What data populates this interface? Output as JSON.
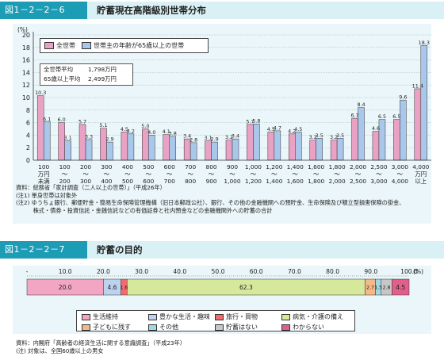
{
  "figure1": {
    "number": "図1－2－2－6",
    "title": "貯蓄現在高階級別世帯分布"
  },
  "figure2": {
    "number": "図1－2－2－7",
    "title": "貯蓄の目的"
  },
  "averages": {
    "all_label": "全世帯平均",
    "all_value": "1,798万円",
    "senior_label": "65歳以上平均",
    "senior_value": "2,499万円"
  },
  "notes1": [
    "資料：総務省「家計調査（二人以上の世帯）」（平成26年）",
    "(注1) 単身世帯は対象外",
    "(注2) ゆうちょ銀行、郵便貯金・簡易生命保険管理機構（旧日本郵政公社）、銀行、その他の金融機関への預貯金、生命保険及び積立型損害保険の掛金、",
    "　　　株式・債券・投資信託・金銭信託などの有価証券と社内預金などの金融機関外への貯蓄の合計"
  ],
  "notes2": [
    "資料：内閣府「高齢者の経済生活に関する意識調査」（平成23年）",
    "(注) 対象は、全国60歳以上の男女"
  ],
  "colors": {
    "all_households": "#e9a2c4",
    "senior_households": "#a9c7ea",
    "axis": "#333333",
    "grid": "#8aa",
    "header_bg": "#d9f0f5",
    "fig_box": "#1d9cb5",
    "panel": "#eaf6f9"
  },
  "chart_data": [
    {
      "type": "bar",
      "y_unit": "(%)",
      "ylim": [
        0,
        20
      ],
      "yticks": [
        0,
        2,
        4,
        6,
        8,
        10,
        12,
        14,
        16,
        18,
        20
      ],
      "categories": [
        [
          "100",
          "万円",
          "未満"
        ],
        [
          "100",
          "～",
          "200"
        ],
        [
          "200",
          "～",
          "300"
        ],
        [
          "300",
          "～",
          "400"
        ],
        [
          "400",
          "～",
          "500"
        ],
        [
          "500",
          "～",
          "600"
        ],
        [
          "600",
          "～",
          "700"
        ],
        [
          "700",
          "～",
          "800"
        ],
        [
          "800",
          "～",
          "900"
        ],
        [
          "900",
          "～",
          "1,000"
        ],
        [
          "1,000",
          "～",
          "1,200"
        ],
        [
          "1,200",
          "～",
          "1,400"
        ],
        [
          "1,400",
          "～",
          "1,600"
        ],
        [
          "1,600",
          "～",
          "1,800"
        ],
        [
          "1,800",
          "～",
          "2,000"
        ],
        [
          "2,000",
          "～",
          "2,500"
        ],
        [
          "2,500",
          "～",
          "3,000"
        ],
        [
          "3,000",
          "～",
          "4,000"
        ],
        [
          "4,000",
          "万円",
          "以上"
        ]
      ],
      "series": [
        {
          "name": "全世帯",
          "values": [
            10.3,
            6.0,
            5.7,
            5.1,
            4.5,
            5.0,
            4.1,
            3.4,
            3.1,
            3.2,
            5.7,
            4.5,
            4.2,
            3.2,
            3.2,
            6.7,
            4.6,
            6.5,
            11.4
          ],
          "labels": [
            "10.3",
            "6.0",
            "5.7",
            "5.1",
            "4.5",
            "5.0",
            "4.1",
            "3.4",
            "3.1",
            "3.2",
            "5.7",
            "4.5",
            "4.2",
            "3.2",
            "3.2",
            "6.7",
            "4.6",
            "6.5",
            "11.4"
          ]
        },
        {
          "name": "世帯主の年齢が65歳以上の世帯",
          "values": [
            6.1,
            3.1,
            3.3,
            2.9,
            4.2,
            4.0,
            3.8,
            2.8,
            2.9,
            3.4,
            5.8,
            4.7,
            4.5,
            3.5,
            3.5,
            8.4,
            6.5,
            9.6,
            18.3
          ],
          "labels": [
            "6.1",
            "3.1",
            "3.3",
            "2.9",
            "4.2",
            "4.0",
            "3.8",
            "2.8",
            "2.9",
            "3.4",
            "5.8",
            "4.7",
            "4.5",
            "3.5",
            "3.5",
            "8.4",
            "6.5",
            "9.6",
            "18.3"
          ]
        }
      ]
    },
    {
      "type": "bar",
      "orientation": "horizontal-stacked",
      "x_unit": "(%)",
      "xlim": [
        0,
        100
      ],
      "xticks": [
        "-",
        "10.0",
        "20.0",
        "30.0",
        "40.0",
        "50.0",
        "60.0",
        "70.0",
        "80.0",
        "90.0",
        "100.0"
      ],
      "series": [
        {
          "name": "生活維持",
          "value": 20.0,
          "label": "20.0",
          "color": "#f2a6c4"
        },
        {
          "name": "豊かな生活・趣味",
          "value": 4.6,
          "label": "4.6",
          "color": "#bcd2ee"
        },
        {
          "name": "旅行・買物",
          "value": 1.6,
          "label": "1.6",
          "color": "#f26a6a"
        },
        {
          "name": "病気・介護の備え",
          "value": 62.3,
          "label": "62.3",
          "color": "#d6e89b"
        },
        {
          "name": "子どもに残す",
          "value": 2.7,
          "label": "2.7",
          "color": "#f4b889"
        },
        {
          "name": "その他",
          "value": 1.5,
          "label": "1.5",
          "color": "#9fd8e4"
        },
        {
          "name": "貯蓄はない",
          "value": 2.8,
          "label": "2.8",
          "color": "#c7c7c7"
        },
        {
          "name": "わからない",
          "value": 4.5,
          "label": "4.5",
          "color": "#e0608a"
        }
      ]
    }
  ]
}
